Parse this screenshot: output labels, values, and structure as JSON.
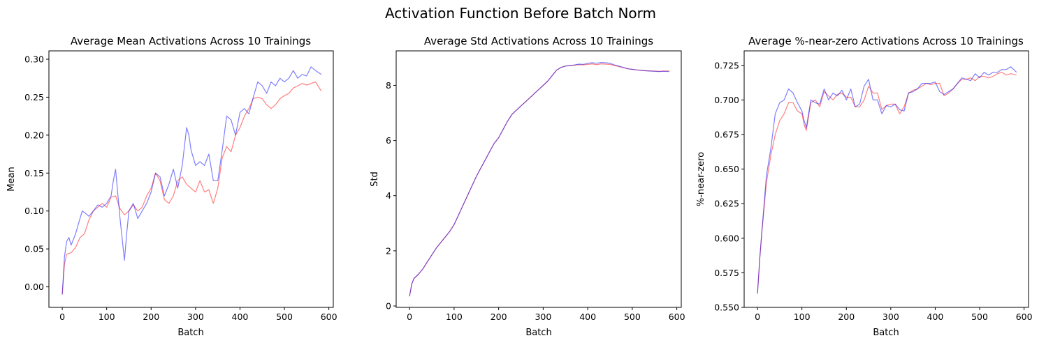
{
  "figure": {
    "suptitle": "Activation Function Before Batch Norm"
  },
  "colors": {
    "series_red": "#ff0000",
    "series_blue": "#0000ff",
    "axis": "#000000",
    "background": "#ffffff"
  },
  "chart_data": [
    {
      "type": "line",
      "title": "Average Mean Activations Across 10 Trainings",
      "xlabel": "Batch",
      "ylabel": "Mean",
      "xlim": [
        -30,
        610
      ],
      "ylim": [
        -0.027,
        0.311
      ],
      "xticks": [
        0,
        100,
        200,
        300,
        400,
        500,
        600
      ],
      "yticks": [
        0.0,
        0.05,
        0.1,
        0.15,
        0.2,
        0.25,
        0.3
      ],
      "ytick_labels": [
        "0.00",
        "0.05",
        "0.10",
        "0.15",
        "0.20",
        "0.25",
        "0.30"
      ],
      "grid": false,
      "series": [
        {
          "color": "red",
          "x": [
            0,
            5,
            10,
            20,
            30,
            40,
            50,
            60,
            70,
            80,
            90,
            100,
            110,
            120,
            130,
            140,
            150,
            160,
            170,
            180,
            190,
            200,
            210,
            220,
            230,
            240,
            250,
            260,
            270,
            280,
            290,
            300,
            310,
            320,
            330,
            340,
            350,
            360,
            370,
            380,
            390,
            400,
            410,
            420,
            430,
            440,
            450,
            460,
            470,
            480,
            490,
            500,
            510,
            520,
            530,
            540,
            550,
            560,
            570,
            583
          ],
          "y": [
            -0.01,
            0.03,
            0.043,
            0.045,
            0.052,
            0.065,
            0.07,
            0.088,
            0.1,
            0.105,
            0.11,
            0.105,
            0.118,
            0.12,
            0.103,
            0.095,
            0.1,
            0.108,
            0.1,
            0.105,
            0.12,
            0.13,
            0.15,
            0.14,
            0.115,
            0.11,
            0.12,
            0.14,
            0.145,
            0.135,
            0.13,
            0.125,
            0.14,
            0.125,
            0.128,
            0.11,
            0.13,
            0.17,
            0.185,
            0.178,
            0.2,
            0.21,
            0.225,
            0.235,
            0.248,
            0.25,
            0.248,
            0.24,
            0.235,
            0.24,
            0.248,
            0.252,
            0.255,
            0.262,
            0.265,
            0.268,
            0.266,
            0.268,
            0.27,
            0.258
          ]
        },
        {
          "color": "blue",
          "x": [
            0,
            5,
            10,
            15,
            20,
            30,
            40,
            45,
            50,
            60,
            70,
            80,
            90,
            100,
            110,
            115,
            120,
            130,
            140,
            145,
            150,
            160,
            170,
            180,
            190,
            200,
            210,
            220,
            230,
            240,
            250,
            260,
            270,
            280,
            285,
            290,
            300,
            310,
            320,
            330,
            340,
            350,
            360,
            370,
            380,
            390,
            400,
            410,
            420,
            430,
            440,
            450,
            460,
            470,
            480,
            490,
            500,
            510,
            520,
            530,
            540,
            550,
            560,
            570,
            583
          ],
          "y": [
            -0.01,
            0.04,
            0.06,
            0.065,
            0.055,
            0.07,
            0.09,
            0.1,
            0.098,
            0.093,
            0.1,
            0.108,
            0.105,
            0.11,
            0.12,
            0.14,
            0.155,
            0.09,
            0.035,
            0.07,
            0.1,
            0.11,
            0.09,
            0.1,
            0.11,
            0.125,
            0.15,
            0.145,
            0.12,
            0.135,
            0.155,
            0.13,
            0.16,
            0.21,
            0.2,
            0.18,
            0.16,
            0.165,
            0.16,
            0.175,
            0.14,
            0.14,
            0.18,
            0.225,
            0.22,
            0.2,
            0.23,
            0.235,
            0.228,
            0.25,
            0.27,
            0.265,
            0.255,
            0.27,
            0.265,
            0.275,
            0.27,
            0.275,
            0.285,
            0.275,
            0.28,
            0.278,
            0.29,
            0.285,
            0.28
          ]
        }
      ]
    },
    {
      "type": "line",
      "title": "Average Std Activations Across 10 Trainings",
      "xlabel": "Batch",
      "ylabel": "Std",
      "xlim": [
        -30,
        610
      ],
      "ylim": [
        -0.05,
        9.25
      ],
      "xticks": [
        0,
        100,
        200,
        300,
        400,
        500,
        600
      ],
      "yticks": [
        0,
        2,
        4,
        6,
        8
      ],
      "ytick_labels": [
        "0",
        "2",
        "4",
        "6",
        "8"
      ],
      "grid": false,
      "series": [
        {
          "color": "red",
          "x": [
            0,
            5,
            10,
            20,
            30,
            40,
            50,
            60,
            70,
            80,
            90,
            100,
            110,
            120,
            130,
            140,
            150,
            160,
            170,
            180,
            190,
            200,
            210,
            220,
            230,
            240,
            250,
            260,
            270,
            280,
            290,
            300,
            310,
            320,
            330,
            340,
            350,
            360,
            370,
            380,
            390,
            400,
            410,
            420,
            430,
            440,
            450,
            460,
            470,
            480,
            490,
            500,
            510,
            520,
            530,
            540,
            550,
            560,
            570,
            583
          ],
          "y": [
            0.35,
            0.8,
            1.0,
            1.15,
            1.35,
            1.6,
            1.85,
            2.1,
            2.3,
            2.5,
            2.7,
            2.95,
            3.3,
            3.65,
            4.0,
            4.35,
            4.7,
            5.0,
            5.3,
            5.6,
            5.9,
            6.1,
            6.4,
            6.7,
            6.95,
            7.1,
            7.25,
            7.4,
            7.55,
            7.7,
            7.85,
            8.0,
            8.15,
            8.35,
            8.55,
            8.65,
            8.7,
            8.72,
            8.73,
            8.75,
            8.74,
            8.76,
            8.78,
            8.75,
            8.78,
            8.77,
            8.76,
            8.72,
            8.68,
            8.64,
            8.6,
            8.58,
            8.56,
            8.54,
            8.53,
            8.52,
            8.52,
            8.51,
            8.52,
            8.52
          ]
        },
        {
          "color": "blue",
          "x": [
            0,
            5,
            10,
            20,
            30,
            40,
            50,
            60,
            70,
            80,
            90,
            100,
            110,
            120,
            130,
            140,
            150,
            160,
            170,
            180,
            190,
            200,
            210,
            220,
            230,
            240,
            250,
            260,
            270,
            280,
            290,
            300,
            310,
            320,
            330,
            340,
            350,
            360,
            370,
            380,
            390,
            400,
            410,
            420,
            430,
            440,
            450,
            460,
            470,
            480,
            490,
            500,
            510,
            520,
            530,
            540,
            550,
            560,
            570,
            583
          ],
          "y": [
            0.35,
            0.8,
            1.0,
            1.15,
            1.35,
            1.6,
            1.85,
            2.1,
            2.3,
            2.5,
            2.7,
            2.95,
            3.3,
            3.65,
            4.0,
            4.35,
            4.7,
            5.0,
            5.3,
            5.6,
            5.9,
            6.1,
            6.4,
            6.7,
            6.95,
            7.1,
            7.25,
            7.4,
            7.55,
            7.7,
            7.85,
            8.0,
            8.15,
            8.35,
            8.55,
            8.65,
            8.7,
            8.72,
            8.74,
            8.77,
            8.76,
            8.8,
            8.82,
            8.8,
            8.83,
            8.82,
            8.8,
            8.74,
            8.7,
            8.65,
            8.6,
            8.58,
            8.56,
            8.55,
            8.53,
            8.52,
            8.51,
            8.5,
            8.51,
            8.5
          ]
        }
      ]
    },
    {
      "type": "line",
      "title": "Average %-near-zero Activations Across 10 Trainings",
      "xlabel": "Batch",
      "ylabel": "%-near-zero",
      "xlim": [
        -30,
        610
      ],
      "ylim": [
        0.55,
        0.7355
      ],
      "xticks": [
        0,
        100,
        200,
        300,
        400,
        500,
        600
      ],
      "yticks": [
        0.55,
        0.575,
        0.6,
        0.625,
        0.65,
        0.675,
        0.7,
        0.725
      ],
      "ytick_labels": [
        "0.550",
        "0.575",
        "0.600",
        "0.625",
        "0.650",
        "0.675",
        "0.700",
        "0.725"
      ],
      "grid": false,
      "series": [
        {
          "color": "red",
          "x": [
            0,
            5,
            10,
            15,
            20,
            30,
            40,
            50,
            60,
            70,
            80,
            90,
            100,
            105,
            110,
            120,
            130,
            140,
            150,
            160,
            170,
            180,
            190,
            200,
            210,
            220,
            230,
            240,
            250,
            260,
            270,
            280,
            290,
            300,
            310,
            320,
            330,
            340,
            350,
            360,
            370,
            380,
            390,
            400,
            410,
            420,
            430,
            440,
            450,
            460,
            470,
            480,
            490,
            500,
            510,
            520,
            530,
            540,
            550,
            560,
            570,
            583
          ],
          "y": [
            0.56,
            0.585,
            0.605,
            0.622,
            0.64,
            0.66,
            0.675,
            0.685,
            0.69,
            0.698,
            0.698,
            0.692,
            0.69,
            0.682,
            0.678,
            0.698,
            0.7,
            0.695,
            0.706,
            0.703,
            0.7,
            0.704,
            0.705,
            0.702,
            0.702,
            0.695,
            0.695,
            0.7,
            0.71,
            0.705,
            0.705,
            0.693,
            0.696,
            0.697,
            0.697,
            0.69,
            0.695,
            0.705,
            0.707,
            0.708,
            0.71,
            0.712,
            0.711,
            0.712,
            0.712,
            0.703,
            0.705,
            0.708,
            0.712,
            0.715,
            0.715,
            0.716,
            0.714,
            0.717,
            0.717,
            0.716,
            0.717,
            0.719,
            0.72,
            0.718,
            0.719,
            0.718
          ]
        },
        {
          "color": "blue",
          "x": [
            0,
            5,
            10,
            15,
            20,
            30,
            40,
            50,
            60,
            70,
            80,
            90,
            100,
            105,
            110,
            120,
            130,
            140,
            150,
            160,
            170,
            180,
            190,
            200,
            210,
            220,
            230,
            240,
            250,
            260,
            270,
            280,
            290,
            300,
            310,
            320,
            330,
            340,
            350,
            360,
            370,
            380,
            390,
            400,
            410,
            420,
            430,
            440,
            450,
            460,
            470,
            480,
            490,
            500,
            510,
            520,
            530,
            540,
            550,
            560,
            570,
            583
          ],
          "y": [
            0.56,
            0.585,
            0.605,
            0.625,
            0.645,
            0.665,
            0.69,
            0.698,
            0.7,
            0.708,
            0.705,
            0.698,
            0.692,
            0.685,
            0.68,
            0.7,
            0.698,
            0.697,
            0.708,
            0.7,
            0.705,
            0.703,
            0.707,
            0.7,
            0.708,
            0.695,
            0.697,
            0.71,
            0.715,
            0.7,
            0.7,
            0.69,
            0.696,
            0.695,
            0.697,
            0.693,
            0.692,
            0.705,
            0.706,
            0.708,
            0.712,
            0.712,
            0.712,
            0.713,
            0.706,
            0.704,
            0.706,
            0.708,
            0.712,
            0.716,
            0.715,
            0.714,
            0.719,
            0.716,
            0.72,
            0.718,
            0.72,
            0.72,
            0.722,
            0.722,
            0.724,
            0.72
          ]
        }
      ]
    }
  ]
}
